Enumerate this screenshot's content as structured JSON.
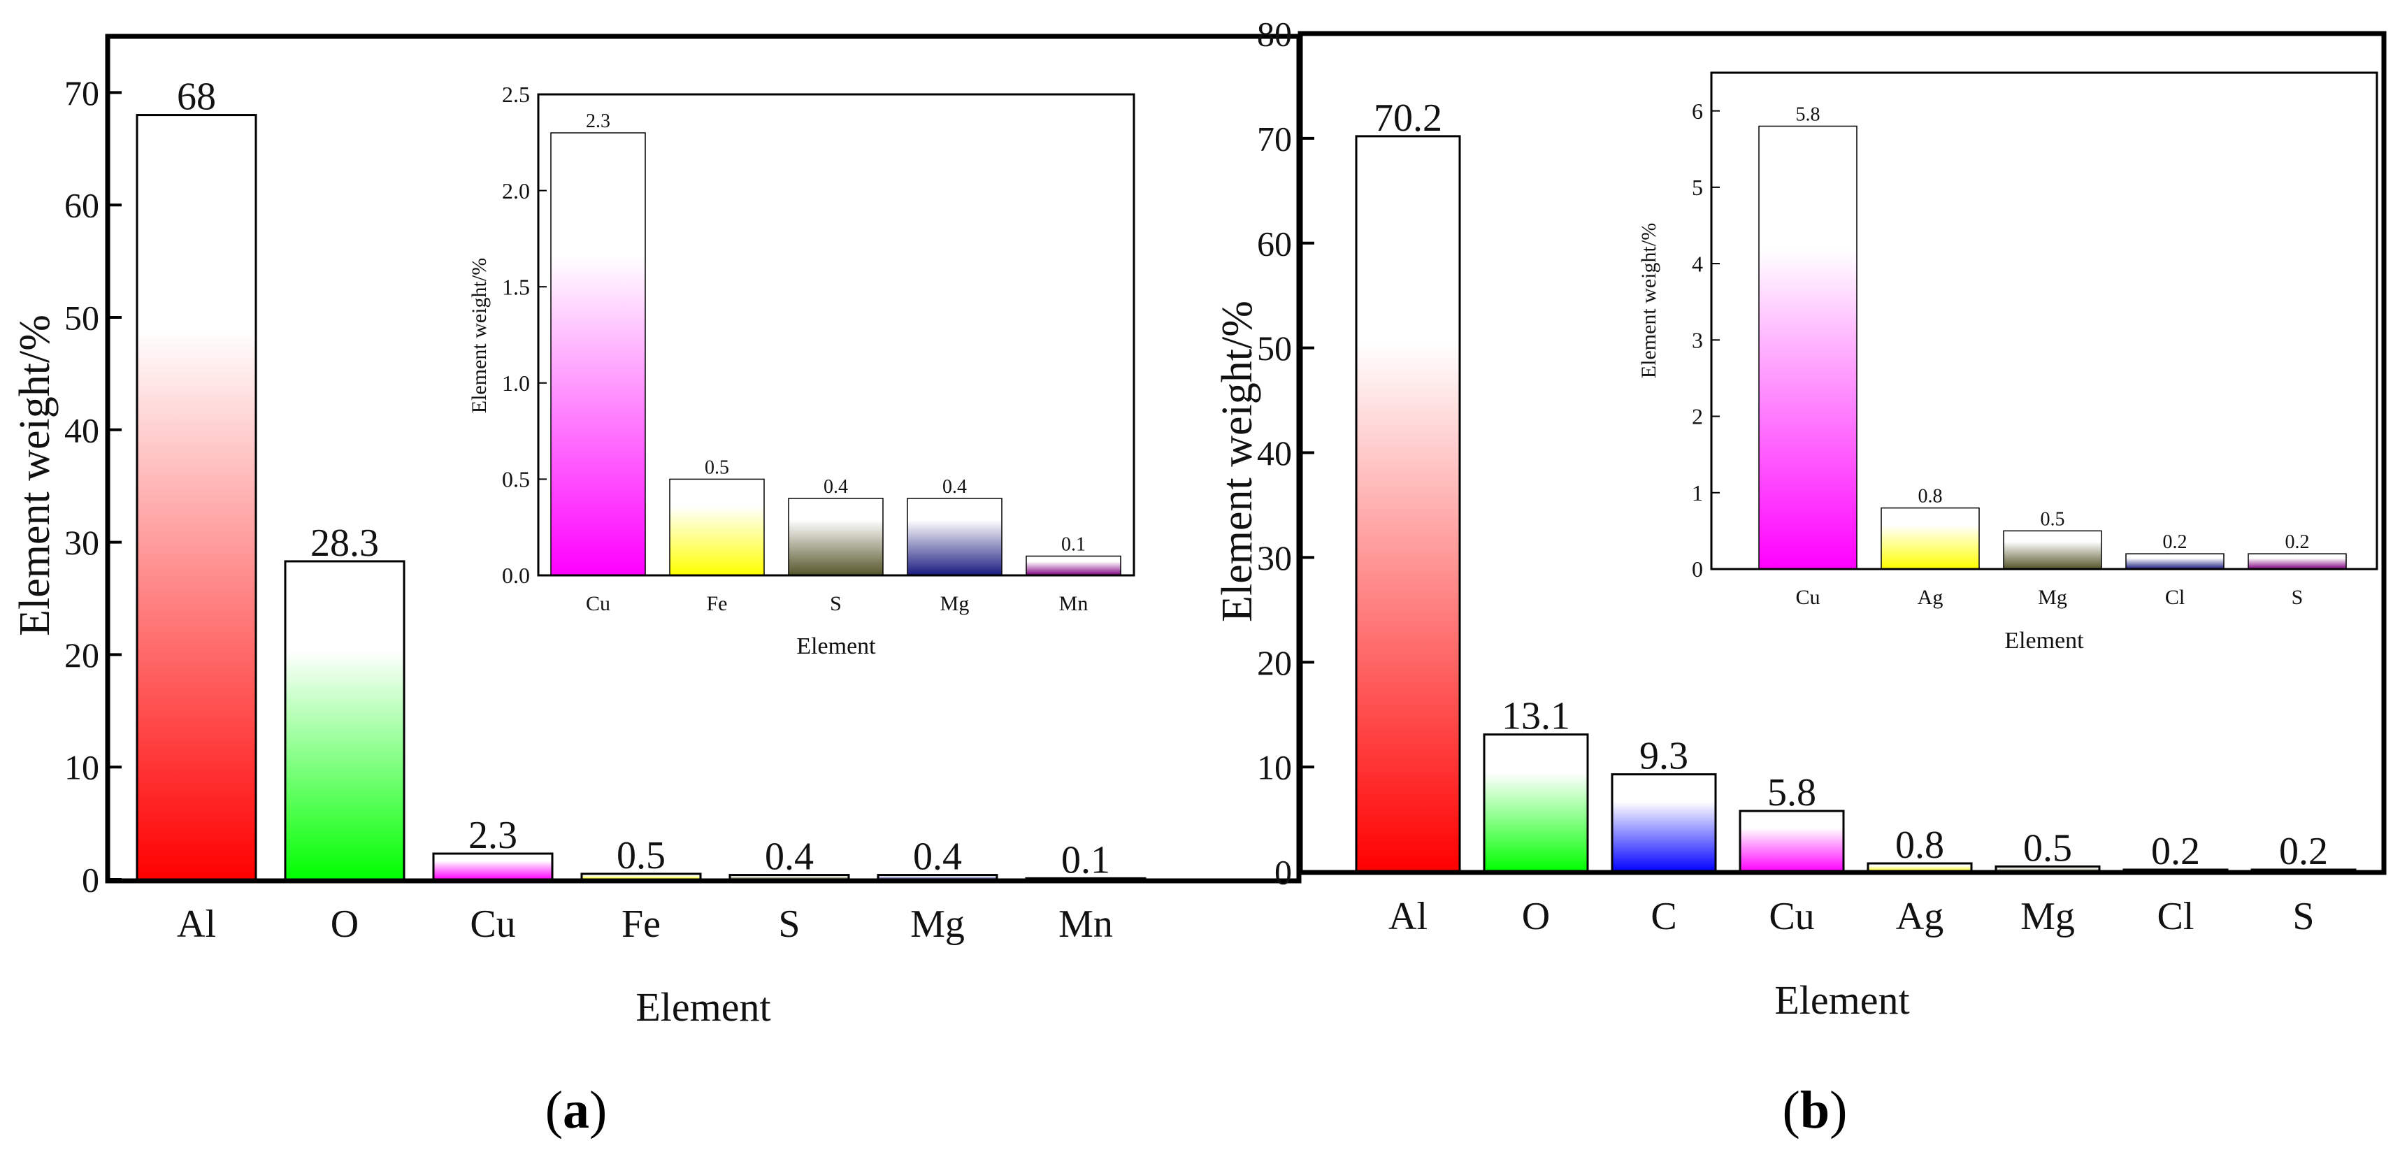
{
  "panels": {
    "a": {
      "open": "(",
      "letter": "a",
      "close": ")"
    },
    "b": {
      "open": "(",
      "letter": "b",
      "close": ")"
    }
  },
  "chart_data": [
    {
      "id": "a-main",
      "type": "bar",
      "categories": [
        "Al",
        "O",
        "Cu",
        "Fe",
        "S",
        "Mg",
        "Mn"
      ],
      "values": [
        68,
        28.3,
        2.3,
        0.5,
        0.4,
        0.4,
        0.1
      ],
      "value_labels": [
        "68",
        "28.3",
        "2.3",
        "0.5",
        "0.4",
        "0.4",
        "0.1"
      ],
      "xlabel": "Element",
      "ylabel": "Element weight/%",
      "ylim": [
        0,
        75
      ],
      "yticks": [
        "0",
        "10",
        "20",
        "30",
        "40",
        "50",
        "60",
        "70"
      ],
      "colors": [
        "#ff0000",
        "#00ff00",
        "#ff00ff",
        "#ffff00",
        "#55552a",
        "#1a1a80",
        "#800080"
      ]
    },
    {
      "id": "a-inset",
      "type": "bar",
      "categories": [
        "Cu",
        "Fe",
        "S",
        "Mg",
        "Mn"
      ],
      "values": [
        2.3,
        0.5,
        0.4,
        0.4,
        0.1
      ],
      "value_labels": [
        "2.3",
        "0.5",
        "0.4",
        "0.4",
        "0.1"
      ],
      "xlabel": "Element",
      "ylabel": "Element weight/%",
      "ylim": [
        0,
        2.5
      ],
      "yticks": [
        "0.0",
        "0.5",
        "1.0",
        "1.5",
        "2.0",
        "2.5"
      ],
      "colors": [
        "#ff00ff",
        "#ffff00",
        "#55552a",
        "#1a1a80",
        "#800080"
      ]
    },
    {
      "id": "b-main",
      "type": "bar",
      "categories": [
        "Al",
        "O",
        "C",
        "Cu",
        "Ag",
        "Mg",
        "Cl",
        "S"
      ],
      "values": [
        70.2,
        13.1,
        9.3,
        5.8,
        0.8,
        0.5,
        0.2,
        0.2
      ],
      "value_labels": [
        "70.2",
        "13.1",
        "9.3",
        "5.8",
        "0.8",
        "0.5",
        "0.2",
        "0.2"
      ],
      "xlabel": "Element",
      "ylabel": "Element weight/%",
      "ylim": [
        0,
        80
      ],
      "yticks": [
        "0",
        "10",
        "20",
        "30",
        "40",
        "50",
        "60",
        "70",
        "80"
      ],
      "colors": [
        "#ff0000",
        "#00ff00",
        "#0000ff",
        "#ff00ff",
        "#ffff00",
        "#55552a",
        "#1a1a80",
        "#800080"
      ]
    },
    {
      "id": "b-inset",
      "type": "bar",
      "categories": [
        "Cu",
        "Ag",
        "Mg",
        "Cl",
        "S"
      ],
      "values": [
        5.8,
        0.8,
        0.5,
        0.2,
        0.2
      ],
      "value_labels": [
        "5.8",
        "0.8",
        "0.5",
        "0.2",
        "0.2"
      ],
      "xlabel": "Element",
      "ylabel": "Element weight/%",
      "ylim": [
        0,
        6.5
      ],
      "yticks": [
        "0",
        "1",
        "2",
        "3",
        "4",
        "5",
        "6"
      ],
      "colors": [
        "#ff00ff",
        "#ffff00",
        "#55552a",
        "#1a1a80",
        "#800080"
      ]
    }
  ]
}
